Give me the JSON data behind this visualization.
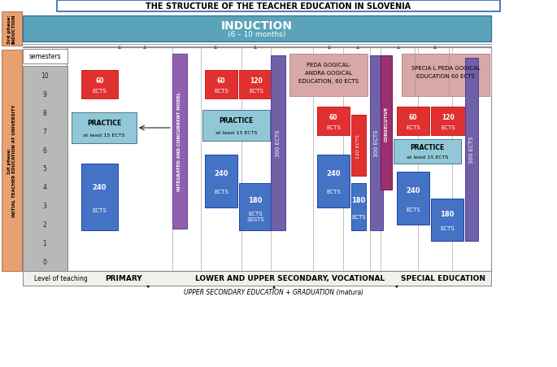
{
  "title": "THE STRUCTURE OF THE TEACHER EDUCATION IN SLOVENIA",
  "bg_color": "#ffffff",
  "induction_color": "#5ba3b8",
  "phase_color": "#e8a070",
  "semester_color": "#b0b0b0",
  "level_of_teaching": "Level of teaching",
  "primary_label": "PRIMARY",
  "lower_upper_label": "LOWER AND UPPER SECONDARY, VOCATIONAL",
  "special_label": "SPECIAL EDUCATION",
  "upper_secondary": "UPPER SECONDARY EDUCATION + GRADUATION (matura)",
  "consecutive_label": "CONSECUTIVE",
  "consecutive_color": "#9b3070",
  "integrated_label": "INTEGRATED AND CONCURRENT MODEL",
  "integrated_color": "#9060b0",
  "ped_andr_color": "#d8a8a8",
  "spec_ped_color": "#d8a8a8",
  "red_color": "#e03030",
  "blue_color": "#4472c4",
  "purple_color": "#7060a8",
  "practice_color": "#90c8d8",
  "gray_col_color": "#b8b8b8"
}
